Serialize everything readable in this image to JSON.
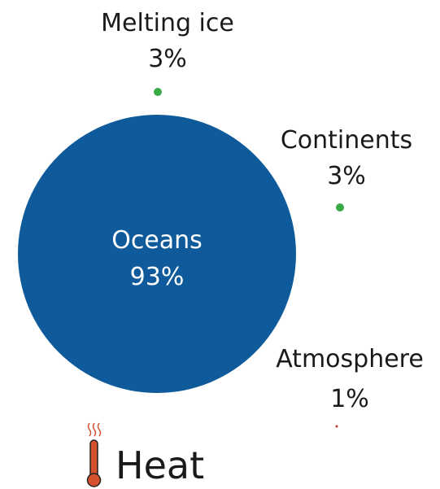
{
  "diagram": {
    "items": [
      {
        "name": "Oceans",
        "value": "93%",
        "color": "#0e5a9a"
      },
      {
        "name": "Melting ice",
        "value": "3%",
        "color": "#3aaa48"
      },
      {
        "name": "Continents",
        "value": "3%",
        "color": "#3aaa48"
      },
      {
        "name": "Atmosphere",
        "value": "1%",
        "color": "#c0392b"
      }
    ],
    "legend": {
      "label": "Heat",
      "icon": "thermometer-icon",
      "color": "#d5502c"
    }
  }
}
